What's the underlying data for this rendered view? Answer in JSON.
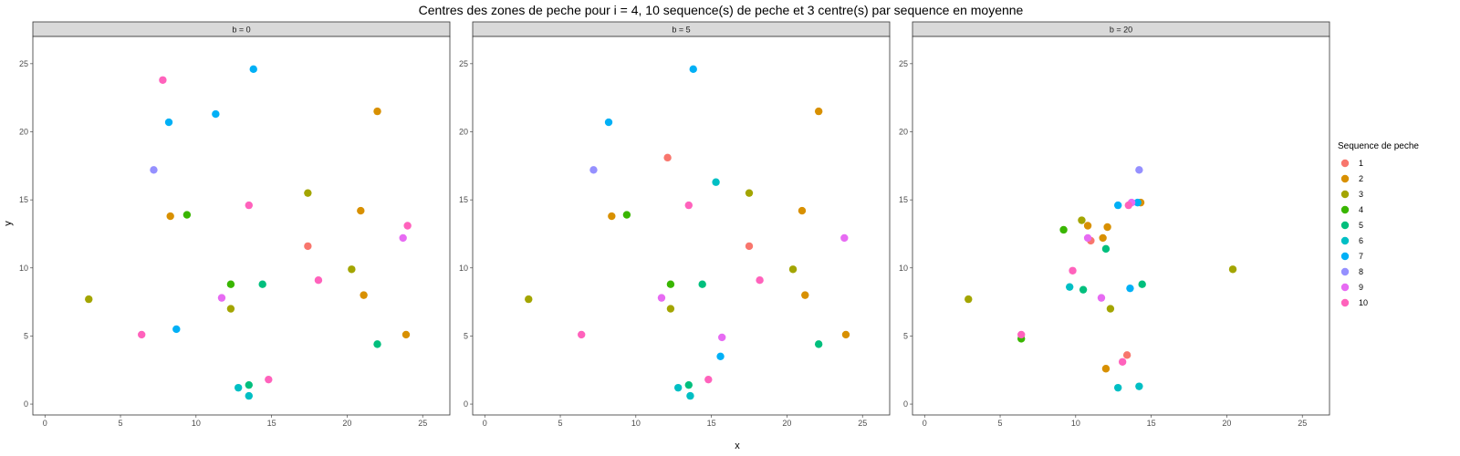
{
  "chart_data": {
    "type": "scatter",
    "title": "Centres des zones de peche pour i = 4, 10 sequence(s) de peche et 3 centre(s) par sequence en moyenne",
    "xlabel": "x",
    "ylabel": "y",
    "xlim": [
      -0.8,
      26.8
    ],
    "ylim": [
      -0.8,
      27.0
    ],
    "x_ticks": [
      0,
      5,
      10,
      15,
      20,
      25
    ],
    "y_ticks": [
      0,
      5,
      10,
      15,
      20,
      25
    ],
    "legend": {
      "title": "Sequence de peche",
      "position": "right",
      "entries": [
        {
          "label": "1",
          "color": "#F8766D"
        },
        {
          "label": "2",
          "color": "#D89000"
        },
        {
          "label": "3",
          "color": "#A3A500"
        },
        {
          "label": "4",
          "color": "#39B600"
        },
        {
          "label": "5",
          "color": "#00BF7D"
        },
        {
          "label": "6",
          "color": "#00BFC4"
        },
        {
          "label": "7",
          "color": "#00B0F6"
        },
        {
          "label": "8",
          "color": "#9590FF"
        },
        {
          "label": "9",
          "color": "#E76BF3"
        },
        {
          "label": "10",
          "color": "#FF62BC"
        }
      ]
    },
    "panels": [
      {
        "label": "b = 0",
        "points": [
          {
            "seq": 1,
            "x": 17.4,
            "y": 11.6
          },
          {
            "seq": 2,
            "x": 8.3,
            "y": 13.8
          },
          {
            "seq": 2,
            "x": 22.0,
            "y": 21.5
          },
          {
            "seq": 2,
            "x": 20.9,
            "y": 14.2
          },
          {
            "seq": 2,
            "x": 21.1,
            "y": 8.0
          },
          {
            "seq": 2,
            "x": 23.9,
            "y": 5.1
          },
          {
            "seq": 3,
            "x": 2.9,
            "y": 7.7
          },
          {
            "seq": 3,
            "x": 17.4,
            "y": 15.5
          },
          {
            "seq": 3,
            "x": 20.3,
            "y": 9.9
          },
          {
            "seq": 3,
            "x": 12.3,
            "y": 7.0
          },
          {
            "seq": 4,
            "x": 9.4,
            "y": 13.9
          },
          {
            "seq": 4,
            "x": 12.3,
            "y": 8.8
          },
          {
            "seq": 5,
            "x": 14.4,
            "y": 8.8
          },
          {
            "seq": 5,
            "x": 22.0,
            "y": 4.4
          },
          {
            "seq": 5,
            "x": 13.5,
            "y": 1.4
          },
          {
            "seq": 6,
            "x": 12.8,
            "y": 1.2
          },
          {
            "seq": 6,
            "x": 13.5,
            "y": 0.6
          },
          {
            "seq": 7,
            "x": 13.8,
            "y": 24.6
          },
          {
            "seq": 7,
            "x": 11.3,
            "y": 21.3
          },
          {
            "seq": 7,
            "x": 8.2,
            "y": 20.7
          },
          {
            "seq": 7,
            "x": 8.7,
            "y": 5.5
          },
          {
            "seq": 8,
            "x": 7.2,
            "y": 17.2
          },
          {
            "seq": 9,
            "x": 11.7,
            "y": 7.8
          },
          {
            "seq": 9,
            "x": 23.7,
            "y": 12.2
          },
          {
            "seq": 10,
            "x": 7.8,
            "y": 23.8
          },
          {
            "seq": 10,
            "x": 13.5,
            "y": 14.6
          },
          {
            "seq": 10,
            "x": 24.0,
            "y": 13.1
          },
          {
            "seq": 10,
            "x": 18.1,
            "y": 9.1
          },
          {
            "seq": 10,
            "x": 6.4,
            "y": 5.1
          },
          {
            "seq": 10,
            "x": 14.8,
            "y": 1.8
          }
        ]
      },
      {
        "label": "b = 5",
        "points": [
          {
            "seq": 1,
            "x": 12.1,
            "y": 18.1
          },
          {
            "seq": 1,
            "x": 17.5,
            "y": 11.6
          },
          {
            "seq": 2,
            "x": 8.4,
            "y": 13.8
          },
          {
            "seq": 2,
            "x": 22.1,
            "y": 21.5
          },
          {
            "seq": 2,
            "x": 21.0,
            "y": 14.2
          },
          {
            "seq": 2,
            "x": 21.2,
            "y": 8.0
          },
          {
            "seq": 2,
            "x": 23.9,
            "y": 5.1
          },
          {
            "seq": 3,
            "x": 2.9,
            "y": 7.7
          },
          {
            "seq": 3,
            "x": 17.5,
            "y": 15.5
          },
          {
            "seq": 3,
            "x": 20.4,
            "y": 9.9
          },
          {
            "seq": 3,
            "x": 12.3,
            "y": 7.0
          },
          {
            "seq": 4,
            "x": 9.4,
            "y": 13.9
          },
          {
            "seq": 4,
            "x": 12.3,
            "y": 8.8
          },
          {
            "seq": 5,
            "x": 14.4,
            "y": 8.8
          },
          {
            "seq": 5,
            "x": 22.1,
            "y": 4.4
          },
          {
            "seq": 5,
            "x": 13.5,
            "y": 1.4
          },
          {
            "seq": 6,
            "x": 15.3,
            "y": 16.3
          },
          {
            "seq": 6,
            "x": 12.8,
            "y": 1.2
          },
          {
            "seq": 6,
            "x": 13.6,
            "y": 0.6
          },
          {
            "seq": 7,
            "x": 13.8,
            "y": 24.6
          },
          {
            "seq": 7,
            "x": 8.2,
            "y": 20.7
          },
          {
            "seq": 7,
            "x": 15.6,
            "y": 3.5
          },
          {
            "seq": 8,
            "x": 7.2,
            "y": 17.2
          },
          {
            "seq": 9,
            "x": 23.8,
            "y": 12.2
          },
          {
            "seq": 9,
            "x": 11.7,
            "y": 7.8
          },
          {
            "seq": 9,
            "x": 15.7,
            "y": 4.9
          },
          {
            "seq": 10,
            "x": 13.5,
            "y": 14.6
          },
          {
            "seq": 10,
            "x": 18.2,
            "y": 9.1
          },
          {
            "seq": 10,
            "x": 6.4,
            "y": 5.1
          },
          {
            "seq": 10,
            "x": 14.8,
            "y": 1.8
          }
        ]
      },
      {
        "label": "b = 20",
        "points": [
          {
            "seq": 1,
            "x": 11.0,
            "y": 12.0
          },
          {
            "seq": 1,
            "x": 13.4,
            "y": 3.6
          },
          {
            "seq": 2,
            "x": 10.8,
            "y": 13.1
          },
          {
            "seq": 2,
            "x": 12.1,
            "y": 13.0
          },
          {
            "seq": 2,
            "x": 11.8,
            "y": 12.2
          },
          {
            "seq": 2,
            "x": 14.3,
            "y": 14.8
          },
          {
            "seq": 2,
            "x": 12.0,
            "y": 2.6
          },
          {
            "seq": 3,
            "x": 2.9,
            "y": 7.7
          },
          {
            "seq": 3,
            "x": 10.4,
            "y": 13.5
          },
          {
            "seq": 3,
            "x": 20.4,
            "y": 9.9
          },
          {
            "seq": 3,
            "x": 12.3,
            "y": 7.0
          },
          {
            "seq": 4,
            "x": 9.2,
            "y": 12.8
          },
          {
            "seq": 4,
            "x": 6.4,
            "y": 4.8
          },
          {
            "seq": 5,
            "x": 12.0,
            "y": 11.4
          },
          {
            "seq": 5,
            "x": 10.5,
            "y": 8.4
          },
          {
            "seq": 5,
            "x": 14.4,
            "y": 8.8
          },
          {
            "seq": 6,
            "x": 9.6,
            "y": 8.6
          },
          {
            "seq": 6,
            "x": 12.8,
            "y": 1.2
          },
          {
            "seq": 6,
            "x": 14.2,
            "y": 1.3
          },
          {
            "seq": 7,
            "x": 12.8,
            "y": 14.6
          },
          {
            "seq": 7,
            "x": 14.1,
            "y": 14.8
          },
          {
            "seq": 7,
            "x": 13.6,
            "y": 8.5
          },
          {
            "seq": 8,
            "x": 14.2,
            "y": 17.2
          },
          {
            "seq": 9,
            "x": 13.7,
            "y": 14.8
          },
          {
            "seq": 9,
            "x": 10.8,
            "y": 12.2
          },
          {
            "seq": 9,
            "x": 11.7,
            "y": 7.8
          },
          {
            "seq": 10,
            "x": 13.5,
            "y": 14.6
          },
          {
            "seq": 10,
            "x": 9.8,
            "y": 9.8
          },
          {
            "seq": 10,
            "x": 6.4,
            "y": 5.1
          },
          {
            "seq": 10,
            "x": 13.1,
            "y": 3.1
          }
        ]
      }
    ]
  }
}
